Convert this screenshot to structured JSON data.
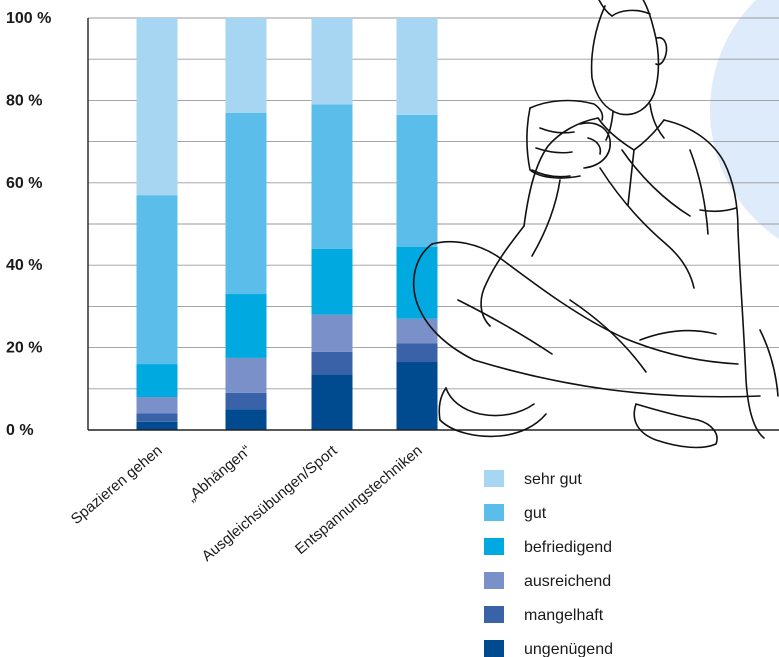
{
  "chart_data": {
    "type": "bar",
    "stacked": true,
    "orientation": "vertical",
    "categories": [
      "Spazieren gehen",
      "„Abhängen“",
      "Ausgleichsübungen/Sport",
      "Entspannungstechniken"
    ],
    "series": [
      {
        "name": "ungenügend",
        "color": "#004a8f",
        "values": [
          2,
          5,
          13.5,
          16.5
        ]
      },
      {
        "name": "mangelhaft",
        "color": "#3a62a8",
        "values": [
          2,
          4,
          5.5,
          4.5
        ]
      },
      {
        "name": "ausreichend",
        "color": "#7a90c8",
        "values": [
          4,
          8.5,
          9,
          6
        ]
      },
      {
        "name": "befriedigend",
        "color": "#00a9e0",
        "values": [
          8,
          15.5,
          16,
          17.5
        ]
      },
      {
        "name": "gut",
        "color": "#5bbdea",
        "values": [
          41,
          44,
          35,
          32
        ]
      },
      {
        "name": "sehr gut",
        "color": "#a6d6f2",
        "values": [
          43,
          23,
          21,
          23.5
        ]
      }
    ],
    "ylim": [
      0,
      100
    ],
    "yticks": [
      0,
      20,
      40,
      60,
      80,
      100
    ],
    "ytick_labels": [
      "0 %",
      "20 %",
      "40 %",
      "60 %",
      "80 %",
      "100 %"
    ],
    "grid": true,
    "legend_position": "bottom-right",
    "legend_order": [
      "sehr gut",
      "gut",
      "befriedigend",
      "ausreichend",
      "mangelhaft",
      "ungenügend"
    ]
  }
}
